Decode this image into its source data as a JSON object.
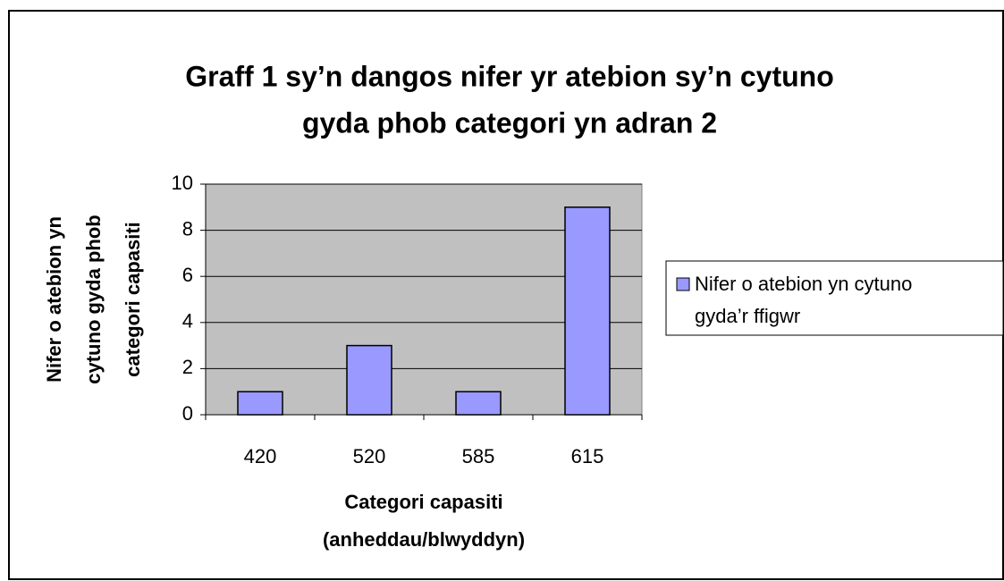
{
  "chart_data": {
    "type": "bar",
    "title": [
      "Graff 1 sy’n dangos nifer yr atebion sy’n cytuno",
      "gyda phob categori yn adran 2"
    ],
    "x_label": [
      "Categori capasiti",
      "(anheddau/blwyddyn)"
    ],
    "y_label": [
      "Nifer o atebion yn",
      "cytuno gyda phob",
      "categori capasiti"
    ],
    "categories": [
      "420",
      "520",
      "585",
      "615"
    ],
    "series": [
      {
        "name": "Nifer o atebion yn cytuno gyda’r ffigwr",
        "color": "#9999ff",
        "values": [
          1,
          3,
          1,
          9
        ]
      }
    ],
    "ylim": [
      0,
      10
    ],
    "yticks": [
      0,
      2,
      4,
      6,
      8,
      10
    ],
    "grid": true,
    "legend": "right"
  }
}
